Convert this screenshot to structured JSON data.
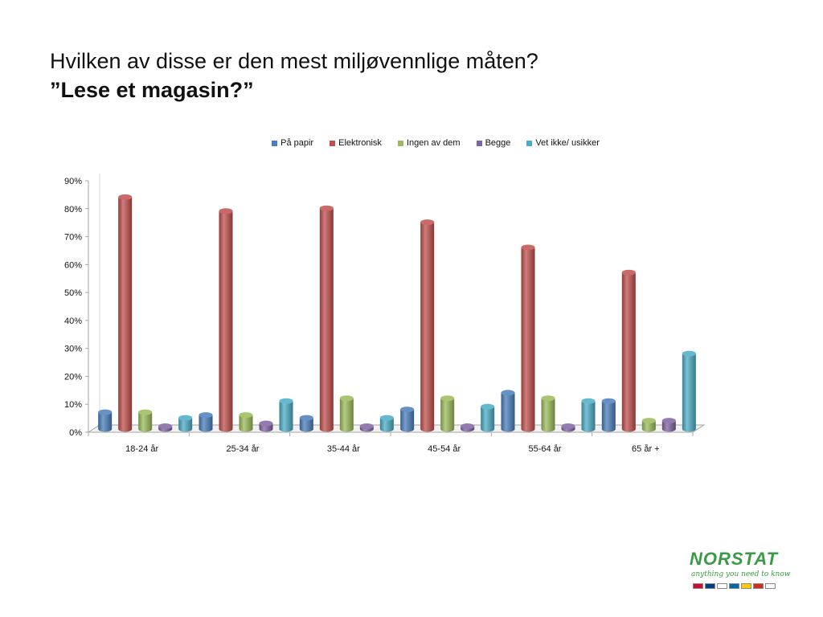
{
  "title": {
    "line1": "Hvilken av disse er den mest miljøvennlige måten?",
    "line2_prefix": "”",
    "line2": "Lese et magasin?”"
  },
  "logo": {
    "name": "NORSTAT",
    "tagline": "anything you need to know",
    "flags": [
      "#c8102e",
      "#003f87",
      "#ffffff",
      "#006aa7",
      "#ffcd00",
      "#d52b1e",
      "#ffffff"
    ]
  },
  "chart_data": {
    "type": "bar",
    "categories": [
      "18-24 år",
      "25-34 år",
      "35-44 år",
      "45-54 år",
      "55-64 år",
      "65 år +"
    ],
    "series": [
      {
        "name": "På papir",
        "color": "#4a7ebb",
        "values": [
          6,
          5,
          4,
          7,
          13,
          10
        ]
      },
      {
        "name": "Elektronisk",
        "color": "#c0504d",
        "values": [
          83,
          78,
          79,
          74,
          65,
          56
        ]
      },
      {
        "name": "Ingen av dem",
        "color": "#9bbb59",
        "values": [
          6,
          5,
          11,
          11,
          11,
          3
        ]
      },
      {
        "name": "Begge",
        "color": "#8064a2",
        "values": [
          1,
          2,
          1,
          1,
          1,
          3
        ]
      },
      {
        "name": "Vet ikke/ usikker",
        "color": "#4bacc6",
        "values": [
          4,
          10,
          4,
          8,
          10,
          27
        ]
      }
    ],
    "y_ticks": [
      "0%",
      "10%",
      "20%",
      "30%",
      "40%",
      "50%",
      "60%",
      "70%",
      "80%",
      "90%"
    ],
    "ylim": [
      0,
      90
    ],
    "legend_position": "top",
    "grid": false
  }
}
